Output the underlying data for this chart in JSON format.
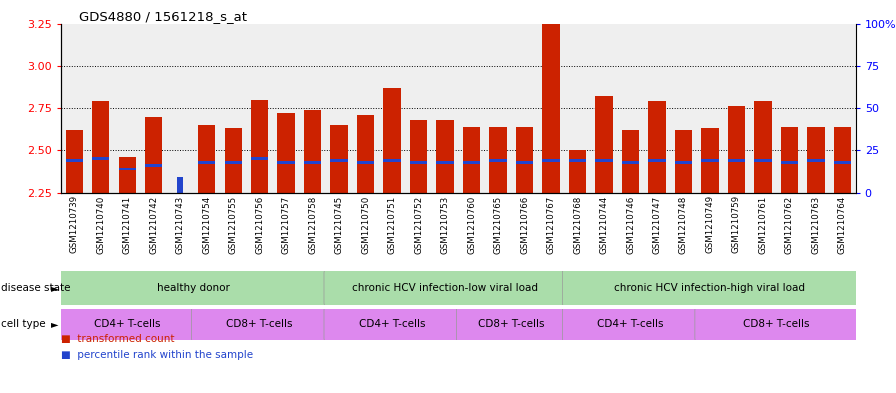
{
  "title": "GDS4880 / 1561218_s_at",
  "samples": [
    "GSM1210739",
    "GSM1210740",
    "GSM1210741",
    "GSM1210742",
    "GSM1210743",
    "GSM1210754",
    "GSM1210755",
    "GSM1210756",
    "GSM1210757",
    "GSM1210758",
    "GSM1210745",
    "GSM1210750",
    "GSM1210751",
    "GSM1210752",
    "GSM1210753",
    "GSM1210760",
    "GSM1210765",
    "GSM1210766",
    "GSM1210767",
    "GSM1210768",
    "GSM1210744",
    "GSM1210746",
    "GSM1210747",
    "GSM1210748",
    "GSM1210749",
    "GSM1210759",
    "GSM1210761",
    "GSM1210762",
    "GSM1210763",
    "GSM1210764"
  ],
  "red_values": [
    2.62,
    2.79,
    2.46,
    2.7,
    2.27,
    2.65,
    2.63,
    2.8,
    2.72,
    2.74,
    2.65,
    2.71,
    2.87,
    2.68,
    2.68,
    2.64,
    2.64,
    2.64,
    3.27,
    2.5,
    2.82,
    2.62,
    2.79,
    2.62,
    2.63,
    2.76,
    2.79,
    2.64,
    2.64,
    2.64
  ],
  "blue_values": [
    2.44,
    2.45,
    2.39,
    2.41,
    2.34,
    2.43,
    2.43,
    2.45,
    2.43,
    2.43,
    2.44,
    2.43,
    2.44,
    2.43,
    2.43,
    2.43,
    2.44,
    2.43,
    2.44,
    2.44,
    2.44,
    2.43,
    2.44,
    2.43,
    2.44,
    2.44,
    2.44,
    2.43,
    2.44,
    2.43
  ],
  "special_idx": 4,
  "ylim_left": [
    2.25,
    3.25
  ],
  "yticks_left": [
    2.25,
    2.5,
    2.75,
    3.0,
    3.25
  ],
  "yticks_right": [
    0,
    25,
    50,
    75,
    100
  ],
  "ytick_labels_right": [
    "0",
    "25",
    "50",
    "75",
    "100%"
  ],
  "bar_color": "#cc2200",
  "blue_color": "#2244cc",
  "plot_bg": "#efefef",
  "xlabel_bg": "#d0d0d0",
  "disease_states": [
    {
      "label": "healthy donor",
      "start": 0,
      "end": 9
    },
    {
      "label": "chronic HCV infection-low viral load",
      "start": 10,
      "end": 18
    },
    {
      "label": "chronic HCV infection-high viral load",
      "start": 19,
      "end": 29
    }
  ],
  "cell_types": [
    {
      "label": "CD4+ T-cells",
      "start": 0,
      "end": 4
    },
    {
      "label": "CD8+ T-cells",
      "start": 5,
      "end": 9
    },
    {
      "label": "CD4+ T-cells",
      "start": 10,
      "end": 14
    },
    {
      "label": "CD8+ T-cells",
      "start": 15,
      "end": 18
    },
    {
      "label": "CD4+ T-cells",
      "start": 19,
      "end": 23
    },
    {
      "label": "CD8+ T-cells",
      "start": 24,
      "end": 29
    }
  ],
  "ds_color": "#aaddaa",
  "ct_color": "#dd88ee",
  "legend_labels": [
    "transformed count",
    "percentile rank within the sample"
  ],
  "grid_lines": [
    2.5,
    2.75,
    3.0
  ]
}
